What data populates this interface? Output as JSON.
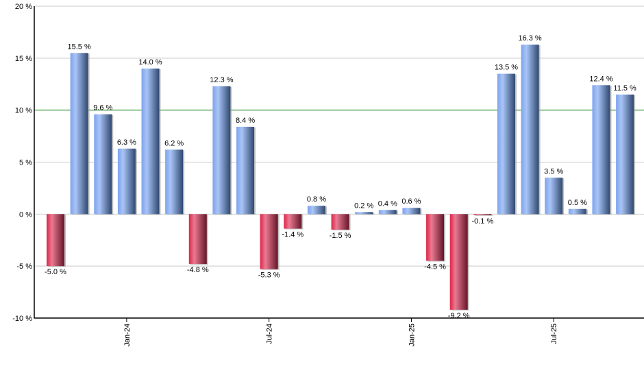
{
  "chart_data": {
    "type": "bar",
    "title": "",
    "xlabel": "",
    "ylabel": "",
    "ylim": [
      -10,
      20
    ],
    "y_ticks": [
      -10,
      -5,
      0,
      5,
      10,
      15,
      20
    ],
    "y_tick_suffix": " %",
    "grid": true,
    "reference_line": {
      "value": 10,
      "color": "#008000"
    },
    "x": [
      "2023-10",
      "2023-11",
      "2023-12",
      "2024-01",
      "2024-02",
      "2024-03",
      "2024-04",
      "2024-05",
      "2024-06",
      "2024-07",
      "2024-08",
      "2024-09",
      "2024-10",
      "2024-11",
      "2024-12",
      "2025-01",
      "2025-02",
      "2025-03",
      "2025-04",
      "2025-05",
      "2025-06",
      "2025-07",
      "2025-08",
      "2025-09",
      "2025-10"
    ],
    "values": [
      -5.0,
      15.5,
      9.6,
      6.3,
      14.0,
      6.2,
      -4.8,
      12.3,
      8.4,
      -5.3,
      -1.4,
      0.8,
      -1.5,
      0.2,
      0.4,
      0.6,
      -4.5,
      -9.2,
      -0.1,
      13.5,
      16.3,
      3.5,
      0.5,
      12.4,
      11.5
    ],
    "data_labels": [
      "-5.0 %",
      "15.5 %",
      "9.6 %",
      "6.3 %",
      "14.0 %",
      "6.2 %",
      "-4.8 %",
      "12.3 %",
      "8.4 %",
      "-5.3 %",
      "-1.4 %",
      "0.8 %",
      "-1.5 %",
      "0.2 %",
      "0.4 %",
      "0.6 %",
      "-4.5 %",
      "-9.2 %",
      "-0.1 %",
      "13.5 %",
      "16.3 %",
      "3.5 %",
      "0.5 %",
      "12.4 %",
      "11.5 %"
    ],
    "x_ticks": [
      {
        "label": "Jan-24",
        "x": "2024-01"
      },
      {
        "label": "Jul-24",
        "x": "2024-07"
      },
      {
        "label": "Jan-25",
        "x": "2025-01"
      },
      {
        "label": "Jul-25",
        "x": "2025-07"
      }
    ],
    "colors": {
      "positive": "#7fa6ee",
      "negative": "#e0304f",
      "grid": "#c8c8c8"
    }
  }
}
